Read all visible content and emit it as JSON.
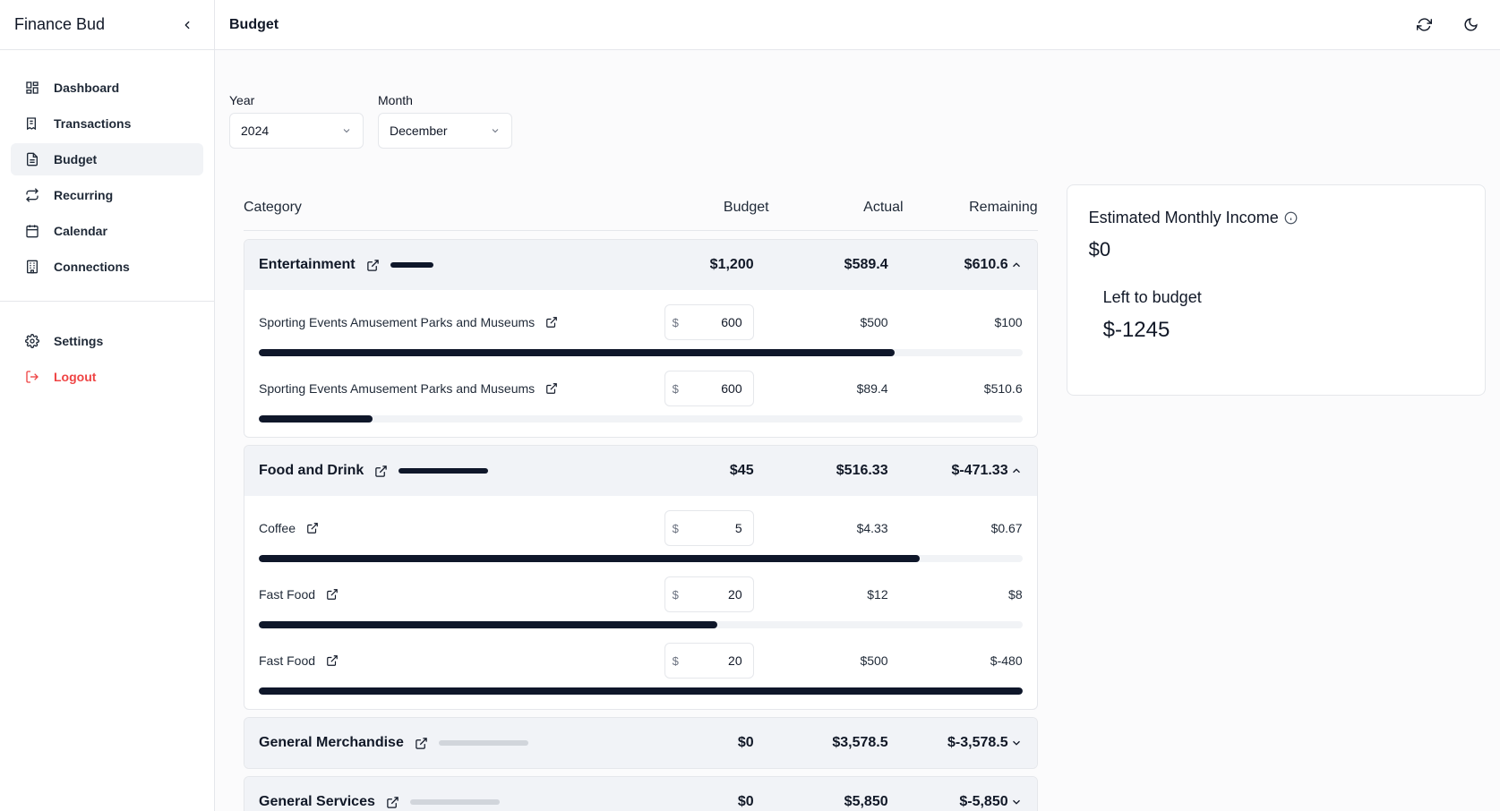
{
  "sidebar": {
    "brand": "Finance Bud",
    "items": [
      {
        "label": "Dashboard",
        "icon": "dashboard-icon"
      },
      {
        "label": "Transactions",
        "icon": "receipt-icon"
      },
      {
        "label": "Budget",
        "icon": "document-icon",
        "active": true
      },
      {
        "label": "Recurring",
        "icon": "repeat-icon"
      },
      {
        "label": "Calendar",
        "icon": "calendar-icon"
      },
      {
        "label": "Connections",
        "icon": "bank-icon"
      }
    ],
    "settings_label": "Settings",
    "logout_label": "Logout"
  },
  "header": {
    "title": "Budget"
  },
  "filters": {
    "year_label": "Year",
    "year_value": "2024",
    "month_label": "Month",
    "month_value": "December"
  },
  "table": {
    "headers": {
      "category": "Category",
      "budget": "Budget",
      "actual": "Actual",
      "remaining": "Remaining"
    },
    "groups": [
      {
        "name": "Entertainment",
        "budget": "$1,200",
        "actual": "$589.4",
        "remaining": "$610.6",
        "expanded": true,
        "items": [
          {
            "name": "Sporting Events Amusement Parks and Museums",
            "currency": "$",
            "budget": "600",
            "actual": "$500",
            "remaining": "$100",
            "progress": 0.833
          },
          {
            "name": "Sporting Events Amusement Parks and Museums",
            "currency": "$",
            "budget": "600",
            "actual": "$89.4",
            "remaining": "$510.6",
            "progress": 0.149
          }
        ]
      },
      {
        "name": "Food and Drink",
        "budget": "$45",
        "actual": "$516.33",
        "remaining": "$-471.33",
        "expanded": true,
        "items": [
          {
            "name": "Coffee",
            "currency": "$",
            "budget": "5",
            "actual": "$4.33",
            "remaining": "$0.67",
            "progress": 0.866
          },
          {
            "name": "Fast Food",
            "currency": "$",
            "budget": "20",
            "actual": "$12",
            "remaining": "$8",
            "progress": 0.6
          },
          {
            "name": "Fast Food",
            "currency": "$",
            "budget": "20",
            "actual": "$500",
            "remaining": "$-480",
            "progress": 1.0
          }
        ]
      },
      {
        "name": "General Merchandise",
        "budget": "$0",
        "actual": "$3,578.5",
        "remaining": "$-3,578.5",
        "expanded": false
      },
      {
        "name": "General Services",
        "budget": "$0",
        "actual": "$5,850",
        "remaining": "$-5,850",
        "expanded": false
      }
    ]
  },
  "income_card": {
    "title": "Estimated Monthly Income",
    "value": "$0",
    "left_label": "Left to budget",
    "left_value": "$-1245"
  },
  "colors": {
    "accent": "#0f172a",
    "danger": "#ef4444",
    "track": "#f1f3f6",
    "inactive_bar": "#d1d5db"
  }
}
